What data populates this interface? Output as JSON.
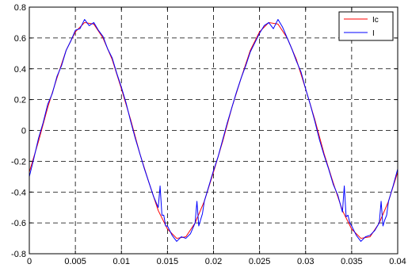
{
  "chart_data": {
    "type": "line",
    "title": "",
    "xlabel": "",
    "ylabel": "",
    "xlim": [
      0,
      0.04
    ],
    "ylim": [
      -0.8,
      0.8
    ],
    "xticks": [
      0,
      0.005,
      0.01,
      0.015,
      0.02,
      0.025,
      0.03,
      0.035,
      0.04
    ],
    "xtick_labels": [
      "0",
      "0.005",
      "0.01",
      "0.015",
      "0.02",
      "0.025",
      "0.03",
      "0.035",
      "0.04"
    ],
    "yticks": [
      -0.8,
      -0.6,
      -0.4,
      -0.2,
      0,
      0.2,
      0.4,
      0.6,
      0.8
    ],
    "ytick_labels": [
      "-0.8",
      "-0.6",
      "-0.4",
      "-0.2",
      "0",
      "0.2",
      "0.4",
      "0.6",
      "0.8"
    ],
    "grid": true,
    "legend_position": "top-right",
    "series": [
      {
        "name": "Ic",
        "color": "#ff0000",
        "x": [
          0,
          0.001,
          0.002,
          0.003,
          0.004,
          0.005,
          0.006,
          0.007,
          0.008,
          0.009,
          0.01,
          0.011,
          0.012,
          0.013,
          0.014,
          0.015,
          0.016,
          0.017,
          0.018,
          0.019,
          0.02,
          0.021,
          0.022,
          0.023,
          0.024,
          0.025,
          0.026,
          0.027,
          0.028,
          0.029,
          0.03,
          0.031,
          0.032,
          0.033,
          0.034,
          0.035,
          0.036,
          0.037,
          0.038,
          0.039,
          0.04
        ],
        "values": [
          -0.27,
          -0.07,
          0.15,
          0.34,
          0.52,
          0.64,
          0.7,
          0.69,
          0.6,
          0.46,
          0.27,
          0.07,
          -0.15,
          -0.34,
          -0.52,
          -0.64,
          -0.7,
          -0.69,
          -0.6,
          -0.46,
          -0.27,
          -0.07,
          0.15,
          0.34,
          0.52,
          0.64,
          0.7,
          0.69,
          0.6,
          0.46,
          0.27,
          0.07,
          -0.15,
          -0.34,
          -0.52,
          -0.64,
          -0.7,
          -0.69,
          -0.6,
          -0.46,
          -0.27
        ]
      },
      {
        "name": "I",
        "color": "#0000ff",
        "x": [
          0,
          0.0005,
          0.001,
          0.0015,
          0.002,
          0.0025,
          0.003,
          0.0035,
          0.004,
          0.0045,
          0.005,
          0.0055,
          0.006,
          0.0065,
          0.007,
          0.0075,
          0.008,
          0.0085,
          0.009,
          0.0095,
          0.01,
          0.0105,
          0.011,
          0.0115,
          0.012,
          0.0125,
          0.013,
          0.0135,
          0.014,
          0.0142,
          0.0144,
          0.0146,
          0.0148,
          0.015,
          0.0155,
          0.016,
          0.0165,
          0.017,
          0.0175,
          0.018,
          0.0182,
          0.0184,
          0.0186,
          0.0188,
          0.019,
          0.0195,
          0.02,
          0.0205,
          0.021,
          0.0215,
          0.022,
          0.0225,
          0.023,
          0.0235,
          0.024,
          0.0245,
          0.025,
          0.0255,
          0.026,
          0.0265,
          0.027,
          0.0275,
          0.028,
          0.0285,
          0.029,
          0.0295,
          0.03,
          0.0305,
          0.031,
          0.0315,
          0.032,
          0.0325,
          0.033,
          0.0335,
          0.034,
          0.0342,
          0.0344,
          0.0346,
          0.0348,
          0.035,
          0.0355,
          0.036,
          0.0365,
          0.037,
          0.0375,
          0.038,
          0.0382,
          0.0384,
          0.0386,
          0.0388,
          0.039,
          0.0395,
          0.04
        ],
        "values": [
          -0.3,
          -0.18,
          -0.05,
          0.05,
          0.17,
          0.24,
          0.35,
          0.42,
          0.52,
          0.58,
          0.65,
          0.66,
          0.72,
          0.68,
          0.7,
          0.65,
          0.61,
          0.53,
          0.47,
          0.37,
          0.28,
          0.18,
          0.06,
          -0.05,
          -0.15,
          -0.25,
          -0.34,
          -0.43,
          -0.5,
          -0.36,
          -0.55,
          -0.55,
          -0.62,
          -0.62,
          -0.68,
          -0.72,
          -0.69,
          -0.7,
          -0.67,
          -0.6,
          -0.46,
          -0.62,
          -0.58,
          -0.54,
          -0.46,
          -0.36,
          -0.26,
          -0.17,
          -0.06,
          0.05,
          0.15,
          0.25,
          0.34,
          0.42,
          0.51,
          0.57,
          0.63,
          0.68,
          0.7,
          0.66,
          0.72,
          0.67,
          0.6,
          0.53,
          0.45,
          0.38,
          0.27,
          0.17,
          0.06,
          -0.06,
          -0.16,
          -0.25,
          -0.35,
          -0.42,
          -0.53,
          -0.36,
          -0.56,
          -0.55,
          -0.6,
          -0.62,
          -0.68,
          -0.72,
          -0.69,
          -0.68,
          -0.65,
          -0.6,
          -0.46,
          -0.62,
          -0.58,
          -0.55,
          -0.46,
          -0.36,
          -0.25
        ]
      }
    ]
  }
}
